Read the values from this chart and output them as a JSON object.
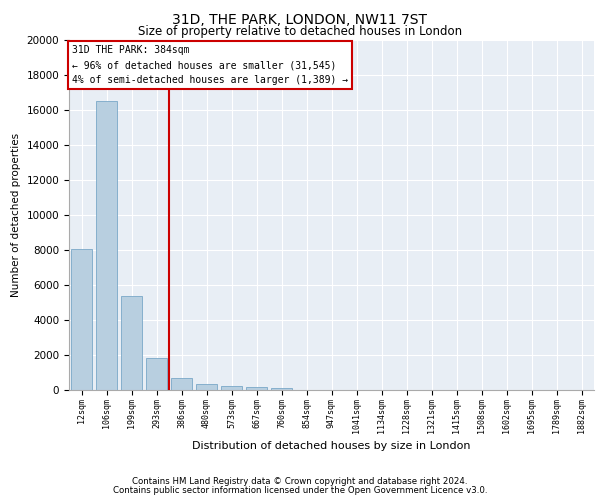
{
  "title1": "31D, THE PARK, LONDON, NW11 7ST",
  "title2": "Size of property relative to detached houses in London",
  "xlabel": "Distribution of detached houses by size in London",
  "ylabel": "Number of detached properties",
  "categories": [
    "12sqm",
    "106sqm",
    "199sqm",
    "293sqm",
    "386sqm",
    "480sqm",
    "573sqm",
    "667sqm",
    "760sqm",
    "854sqm",
    "947sqm",
    "1041sqm",
    "1134sqm",
    "1228sqm",
    "1321sqm",
    "1415sqm",
    "1508sqm",
    "1602sqm",
    "1695sqm",
    "1789sqm",
    "1882sqm"
  ],
  "values": [
    8050,
    16500,
    5350,
    1850,
    680,
    350,
    230,
    185,
    140,
    0,
    0,
    0,
    0,
    0,
    0,
    0,
    0,
    0,
    0,
    0,
    0
  ],
  "bar_color": "#b8cfe0",
  "bar_edge_color": "#7aa8c8",
  "vline_color": "#cc0000",
  "annotation_title": "31D THE PARK: 384sqm",
  "annotation_line1": "← 96% of detached houses are smaller (31,545)",
  "annotation_line2": "4% of semi-detached houses are larger (1,389) →",
  "annotation_box_color": "#ffffff",
  "annotation_box_edge": "#cc0000",
  "ylim": [
    0,
    20000
  ],
  "yticks": [
    0,
    2000,
    4000,
    6000,
    8000,
    10000,
    12000,
    14000,
    16000,
    18000,
    20000
  ],
  "fig_bg_color": "#ffffff",
  "plot_bg_color": "#e8eef5",
  "footer1": "Contains HM Land Registry data © Crown copyright and database right 2024.",
  "footer2": "Contains public sector information licensed under the Open Government Licence v3.0."
}
